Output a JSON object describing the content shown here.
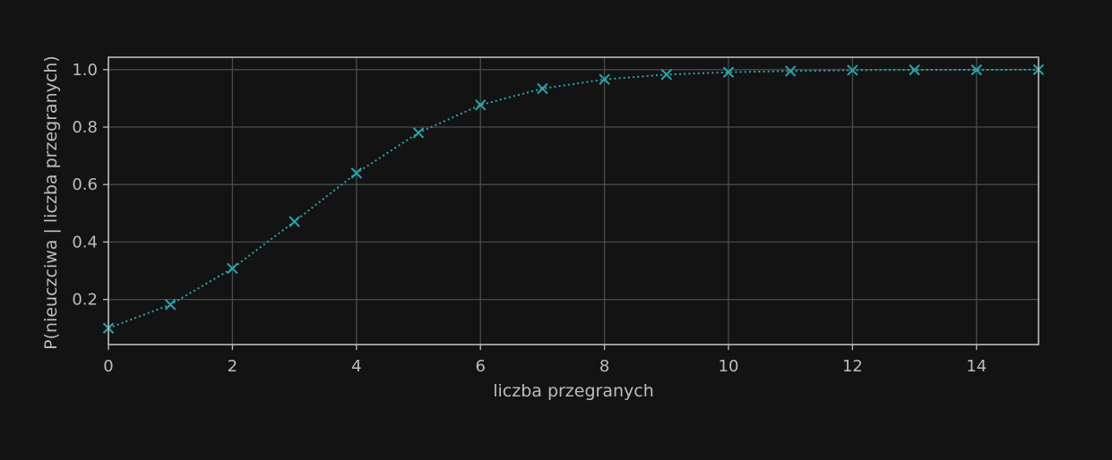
{
  "chart_data": {
    "type": "line",
    "title": "",
    "xlabel": "liczba przegranych",
    "ylabel": "P(nieuczciwa | liczba przegranych)",
    "xlim": [
      0,
      15
    ],
    "ylim": [
      0.043,
      1.043
    ],
    "xticks": [
      0,
      2,
      4,
      6,
      8,
      10,
      12,
      14
    ],
    "xtick_labels": [
      "0",
      "2",
      "4",
      "6",
      "8",
      "10",
      "12",
      "14"
    ],
    "yticks": [
      0.2,
      0.4,
      0.6,
      0.8,
      1.0
    ],
    "ytick_labels": [
      "0.2",
      "0.4",
      "0.6",
      "0.8",
      "1.0"
    ],
    "grid": true,
    "legend": "none",
    "series": [
      {
        "x": [
          0,
          1,
          2,
          3,
          4,
          5,
          6,
          7,
          8,
          9,
          10,
          11,
          12,
          13,
          14,
          15
        ],
        "y": [
          0.1,
          0.182,
          0.308,
          0.471,
          0.64,
          0.78,
          0.877,
          0.934,
          0.966,
          0.983,
          0.991,
          0.995,
          0.998,
          0.999,
          0.999,
          1.0
        ],
        "marker": "x",
        "line_style": "dotted",
        "color": "#2aa5ad"
      }
    ],
    "colors": {
      "background": "#131313",
      "grid": "#4a4a4a",
      "axes": "#bdbdbd",
      "text": "#bdbdbd"
    }
  }
}
